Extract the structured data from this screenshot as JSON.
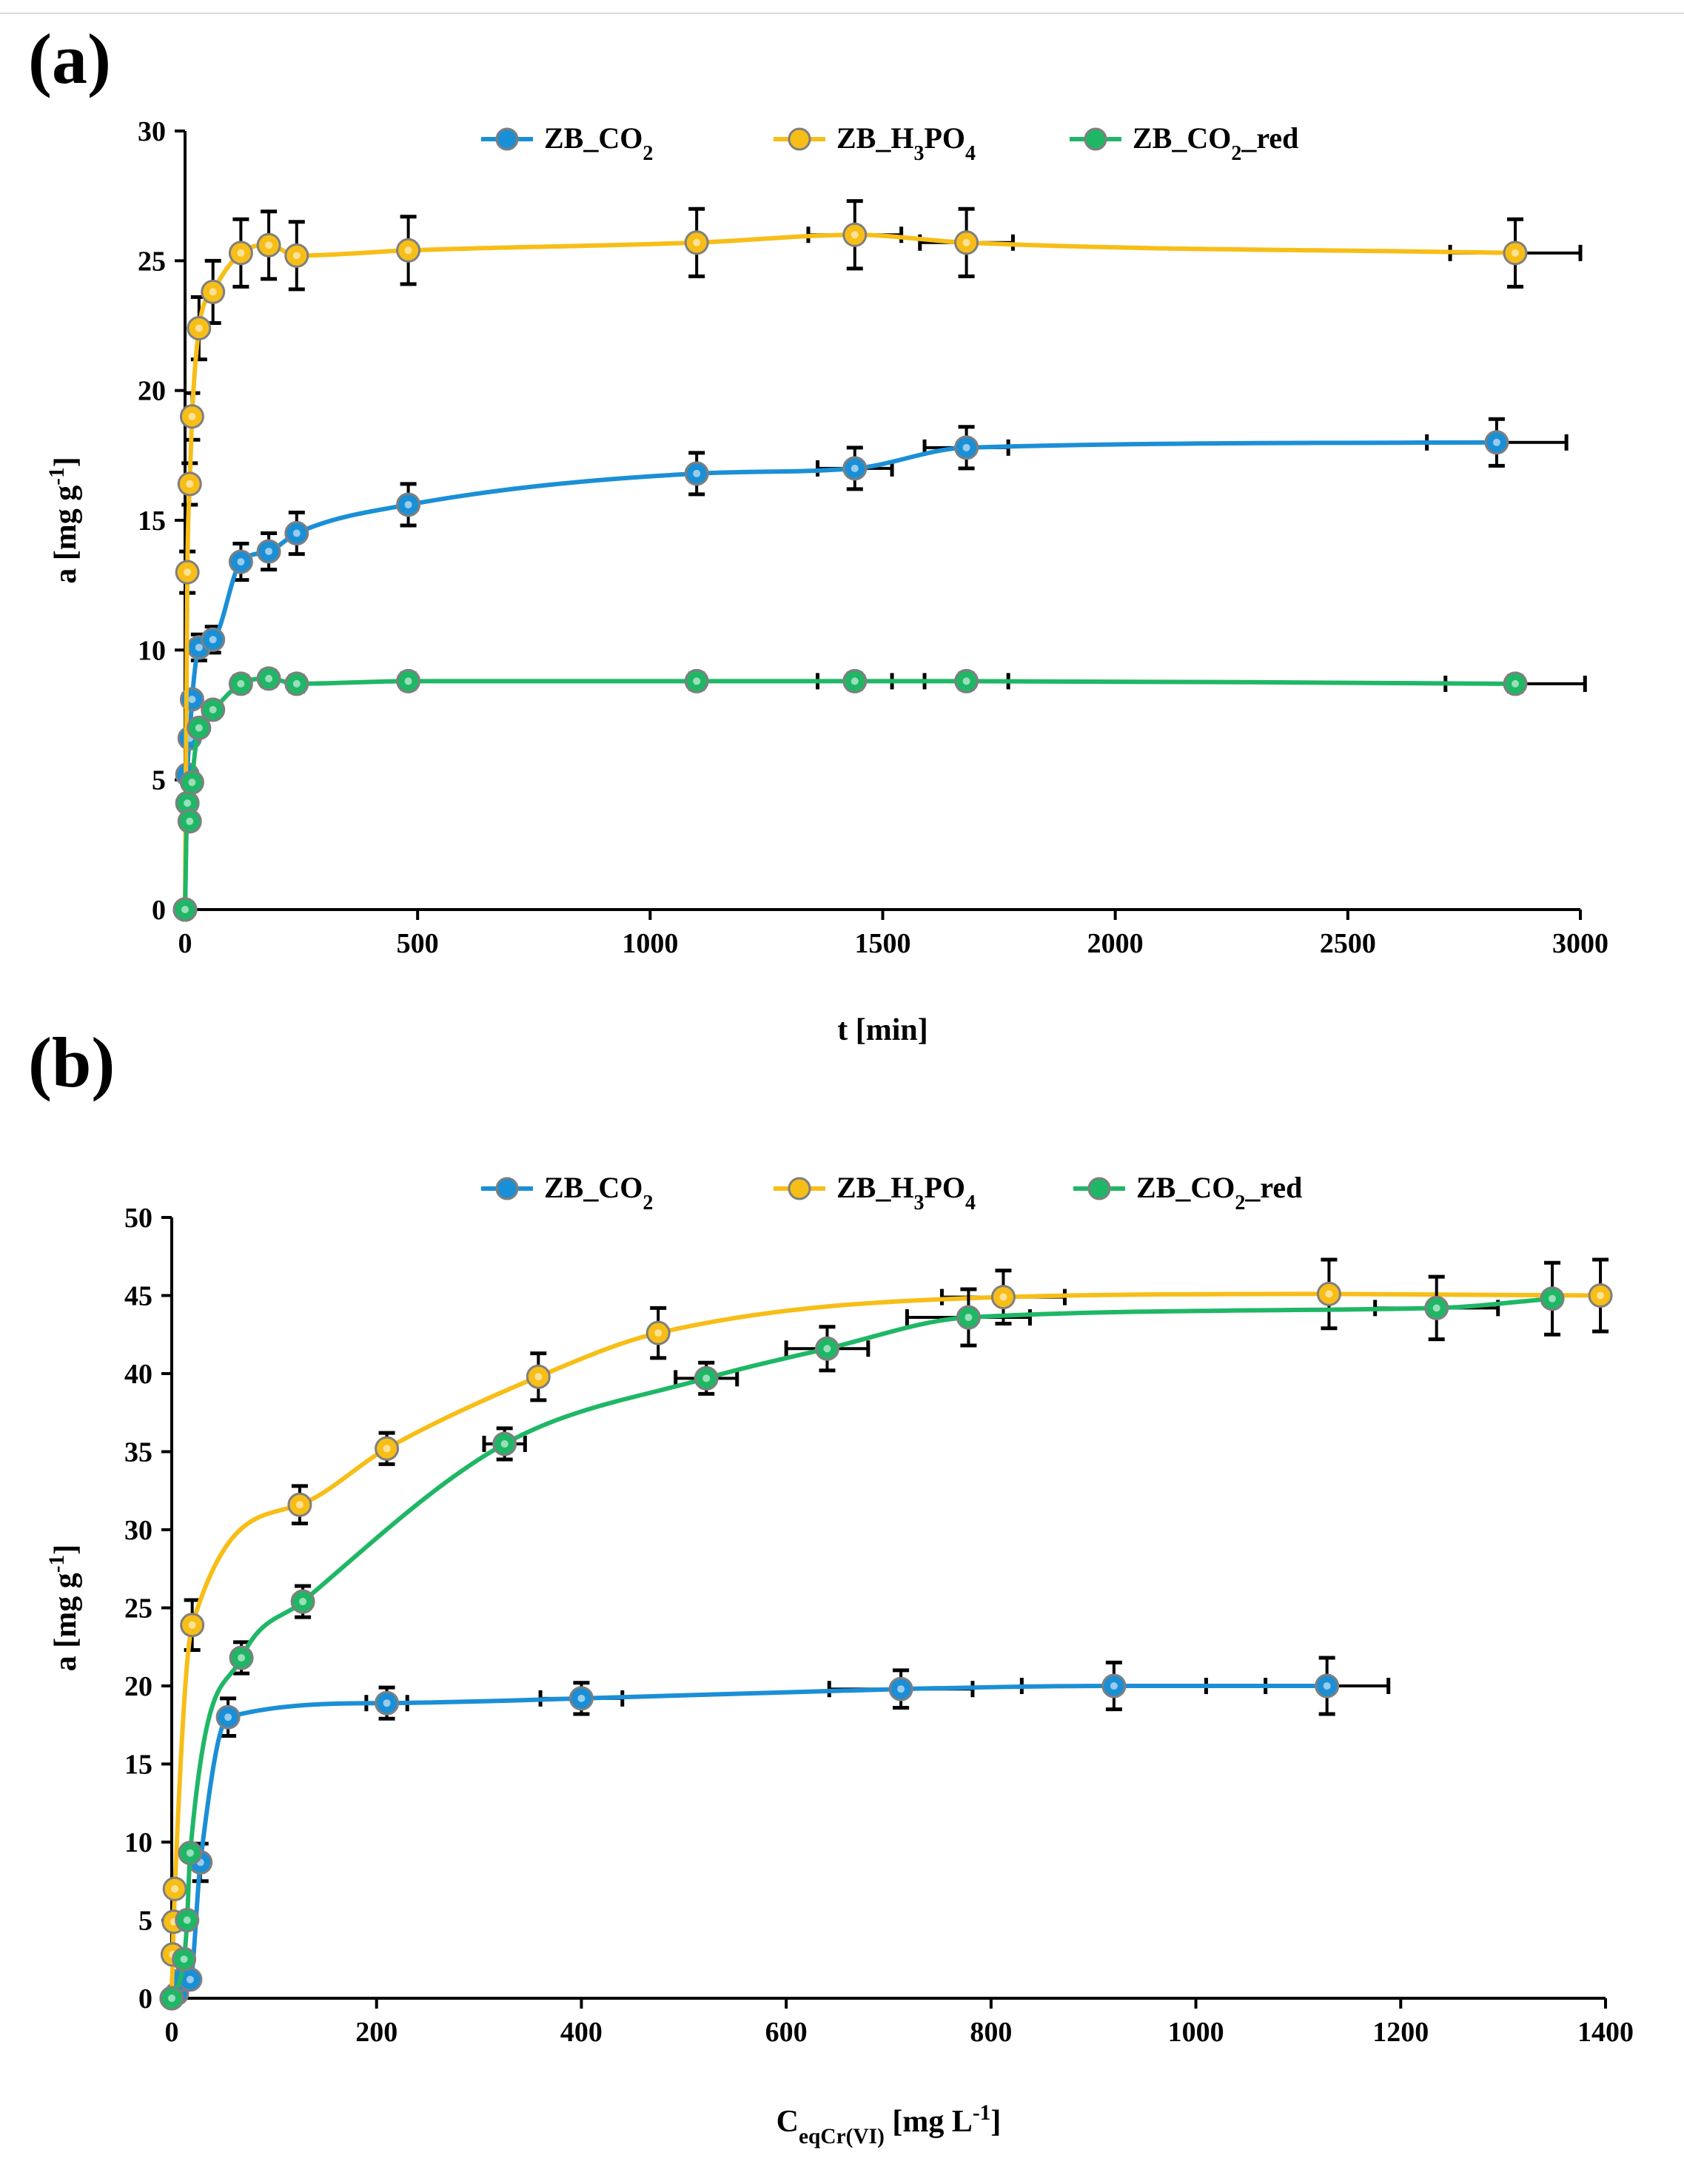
{
  "chart_data": [
    {
      "panel_label": "(a)",
      "type": "line",
      "xlabel": "t [min]",
      "ylabel": {
        "main": "a [mg g",
        "sup": "-1",
        "close": "]"
      },
      "xlim": [
        0,
        3000
      ],
      "ylim": [
        0,
        30
      ],
      "xticks": [
        0,
        500,
        1000,
        1500,
        2000,
        2500,
        3000
      ],
      "yticks": [
        0,
        5,
        10,
        15,
        20,
        25,
        30
      ],
      "legend_position": "top",
      "series": [
        {
          "name": "ZB_CO2",
          "legend": {
            "parts": [
              {
                "t": "ZB_CO"
              },
              {
                "t": "2",
                "sub": true
              }
            ]
          },
          "color": "#1b8fd6",
          "x": [
            0,
            5,
            10,
            15,
            30,
            60,
            120,
            180,
            240,
            480,
            1100,
            1440,
            1680,
            2820
          ],
          "y": [
            0,
            5.2,
            6.6,
            8.1,
            10.1,
            10.4,
            13.4,
            13.8,
            14.5,
            15.6,
            16.8,
            17.0,
            17.8,
            18.0
          ],
          "yerr": [
            0,
            0,
            0,
            0,
            0.5,
            0.5,
            0.7,
            0.7,
            0.8,
            0.8,
            0.8,
            0.8,
            0.8,
            0.9
          ],
          "xerr": [
            0,
            0,
            0,
            0,
            0,
            0,
            0,
            0,
            0,
            0,
            0,
            80,
            90,
            150
          ]
        },
        {
          "name": "ZB_H3PO4",
          "legend": {
            "parts": [
              {
                "t": "ZB_H"
              },
              {
                "t": "3",
                "sub": true
              },
              {
                "t": "PO"
              },
              {
                "t": "4",
                "sub": true
              }
            ]
          },
          "color": "#f7be18",
          "x": [
            0,
            5,
            10,
            15,
            30,
            60,
            120,
            180,
            240,
            480,
            1100,
            1440,
            1680,
            2860
          ],
          "y": [
            0,
            13.0,
            16.4,
            19.0,
            22.4,
            23.8,
            25.3,
            25.6,
            25.2,
            25.4,
            25.7,
            26.0,
            25.7,
            25.3
          ],
          "yerr": [
            0,
            0.8,
            0.8,
            0.9,
            1.2,
            1.2,
            1.3,
            1.3,
            1.3,
            1.3,
            1.3,
            1.3,
            1.3,
            1.3
          ],
          "xerr": [
            0,
            0,
            0,
            0,
            0,
            0,
            0,
            0,
            0,
            0,
            0,
            100,
            100,
            140
          ]
        },
        {
          "name": "ZB_CO2_red",
          "legend": {
            "parts": [
              {
                "t": "ZB_CO"
              },
              {
                "t": "2",
                "sub": true
              },
              {
                "t": "_red"
              }
            ]
          },
          "color": "#1fb766",
          "x": [
            0,
            5,
            10,
            15,
            30,
            60,
            120,
            180,
            240,
            480,
            1100,
            1440,
            1680,
            2860
          ],
          "y": [
            0,
            4.1,
            3.4,
            4.9,
            7.0,
            7.7,
            8.7,
            8.9,
            8.7,
            8.8,
            8.8,
            8.8,
            8.8,
            8.7
          ],
          "yerr": [
            0,
            0,
            0,
            0,
            0,
            0,
            0.3,
            0.3,
            0.3,
            0.3,
            0.3,
            0.3,
            0.3,
            0.3
          ],
          "xerr": [
            0,
            0,
            0,
            0,
            0,
            0,
            0,
            0,
            0,
            0,
            0,
            80,
            90,
            150
          ]
        }
      ]
    },
    {
      "panel_label": "(b)",
      "type": "line",
      "xlabel": {
        "main": "C",
        "sub": "eqCr(VI)",
        "rest": " [mg L",
        "sup": "-1",
        "close": "]"
      },
      "ylabel": {
        "main": "a [mg g",
        "sup": "-1",
        "close": "]"
      },
      "xlim": [
        0,
        1400
      ],
      "ylim": [
        0,
        50
      ],
      "xticks": [
        0,
        200,
        400,
        600,
        800,
        1000,
        1200,
        1400
      ],
      "yticks": [
        0,
        5,
        10,
        15,
        20,
        25,
        30,
        35,
        40,
        45,
        50
      ],
      "legend_position": "top",
      "series": [
        {
          "name": "ZB_CO2",
          "legend": {
            "parts": [
              {
                "t": "ZB_CO"
              },
              {
                "t": "2",
                "sub": true
              }
            ]
          },
          "color": "#1b8fd6",
          "x": [
            0,
            5,
            10,
            18,
            28,
            55,
            210,
            400,
            712,
            920,
            1128
          ],
          "y": [
            0,
            0.3,
            1.2,
            1.2,
            8.7,
            18.0,
            18.9,
            19.2,
            19.8,
            20.0,
            20.0
          ],
          "yerr": [
            0,
            0,
            0,
            0,
            1.2,
            1.2,
            1.0,
            1.0,
            1.2,
            1.5,
            1.8
          ],
          "xerr": [
            0,
            0,
            0,
            0,
            0,
            0,
            20,
            40,
            70,
            90,
            60
          ]
        },
        {
          "name": "ZB_H3PO4",
          "legend": {
            "parts": [
              {
                "t": "ZB_H"
              },
              {
                "t": "3",
                "sub": true
              },
              {
                "t": "PO"
              },
              {
                "t": "4",
                "sub": true
              }
            ]
          },
          "color": "#f7be18",
          "x": [
            0,
            1,
            2,
            3,
            20,
            125,
            210,
            358,
            475,
            812,
            1130,
            1395
          ],
          "y": [
            0,
            2.8,
            4.9,
            7.0,
            23.9,
            31.6,
            35.2,
            39.8,
            42.6,
            44.9,
            45.1,
            45.0
          ],
          "yerr": [
            0,
            0,
            0,
            0,
            1.6,
            1.2,
            1.0,
            1.5,
            1.6,
            1.7,
            2.2,
            2.3
          ],
          "xerr": [
            0,
            0,
            0,
            0,
            0,
            0,
            0,
            0,
            0,
            60,
            0,
            0
          ]
        },
        {
          "name": "ZB_CO2_red",
          "legend": {
            "parts": [
              {
                "t": "ZB_CO"
              },
              {
                "t": "2",
                "sub": true
              },
              {
                "t": "_red"
              }
            ]
          },
          "color": "#1fb766",
          "x": [
            0,
            12,
            15,
            18,
            68,
            128,
            325,
            522,
            640,
            778,
            1235,
            1348
          ],
          "y": [
            0,
            2.5,
            5.0,
            9.3,
            21.8,
            25.4,
            35.5,
            39.7,
            41.6,
            43.6,
            44.2,
            44.8
          ],
          "yerr": [
            0,
            0,
            0,
            0,
            1.0,
            1.0,
            1.0,
            1.0,
            1.4,
            1.8,
            2.0,
            2.3
          ],
          "xerr": [
            0,
            0,
            0,
            0,
            0,
            0,
            20,
            30,
            40,
            60,
            60,
            0
          ]
        }
      ]
    }
  ]
}
